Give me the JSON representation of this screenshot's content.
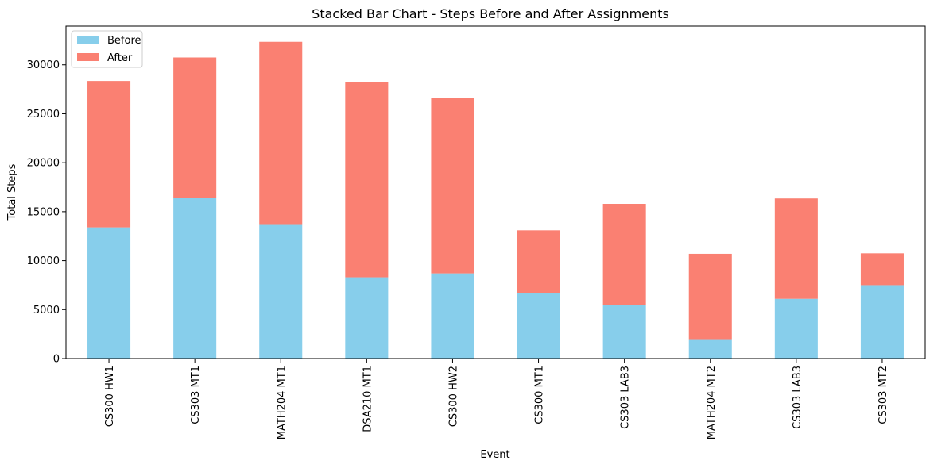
{
  "chart_data": {
    "type": "bar",
    "stacked": true,
    "title": "Stacked Bar Chart - Steps Before and After Assignments",
    "xlabel": "Event",
    "ylabel": "Total Steps",
    "categories": [
      "CS300 HW1",
      "CS303 MT1",
      "MATH204 MT1",
      "DSA210 MT1",
      "CS300 HW2",
      "CS300 MT1",
      "CS303 LAB3",
      "MATH204 MT2",
      "CS303 LAB3",
      "CS303 MT2"
    ],
    "series": [
      {
        "name": "Before",
        "color": "#87ceeb",
        "values": [
          13400,
          16400,
          13650,
          8300,
          8700,
          6700,
          5450,
          1900,
          6100,
          7500
        ]
      },
      {
        "name": "After",
        "color": "#fa8072",
        "values": [
          14950,
          14350,
          18700,
          19950,
          17950,
          6400,
          10350,
          8800,
          10250,
          3250
        ]
      }
    ],
    "ylim": [
      0,
      33950
    ],
    "yticks": [
      0,
      5000,
      10000,
      15000,
      20000,
      25000,
      30000
    ],
    "legend": "top-left",
    "grid": false
  }
}
